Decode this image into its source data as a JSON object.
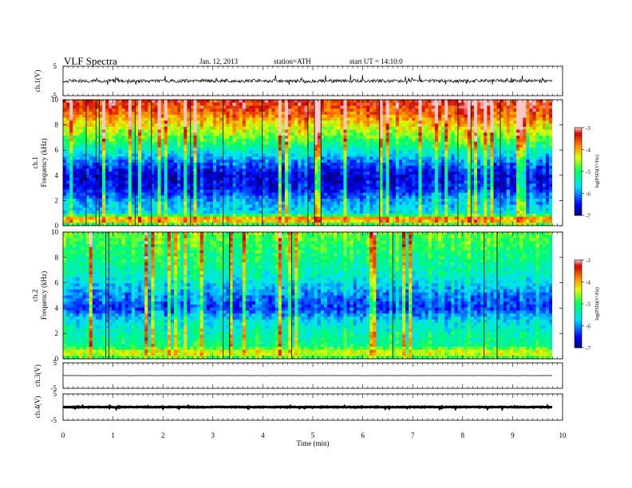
{
  "header": {
    "title": "VLF  Spectra",
    "date": "Jan. 12, 2013",
    "station": "station=ATH",
    "start": "start  UT  =   14:10:0"
  },
  "chart_data": [
    {
      "type": "line",
      "panel": "ch1-waveform",
      "ylabel": "ch.1(V)",
      "ylim": [
        -5,
        5
      ],
      "yticks": [
        "5",
        "-5"
      ],
      "xlim": [
        0,
        10
      ],
      "baseline": 0,
      "amplitude_range": [
        -1.2,
        1.3
      ]
    },
    {
      "type": "heatmap",
      "panel": "ch1-spectrogram",
      "ylabel": "ch.1\nFrequency  (kHz)",
      "ylabel_ch": "ch.1",
      "ylabel_freq": "Frequency  (kHz)",
      "ylim": [
        0,
        10
      ],
      "yticks": [
        "0",
        "2",
        "4",
        "6",
        "8",
        "10"
      ],
      "xlim": [
        0,
        9.8
      ],
      "zlim": [
        -7,
        -3
      ],
      "colorbar_label": "log(PSD)(V²/Hz)",
      "colorbar_ticks": [
        "-3",
        "-4",
        "-5",
        "-6",
        "-7"
      ],
      "profile_log_psd": [
        {
          "f": 0.0,
          "v": -5.2
        },
        {
          "f": 0.5,
          "v": -3.6
        },
        {
          "f": 1.0,
          "v": -5.6
        },
        {
          "f": 2.0,
          "v": -5.9
        },
        {
          "f": 3.0,
          "v": -6.5
        },
        {
          "f": 4.0,
          "v": -6.6
        },
        {
          "f": 5.0,
          "v": -6.1
        },
        {
          "f": 6.0,
          "v": -5.4
        },
        {
          "f": 7.0,
          "v": -4.7
        },
        {
          "f": 8.0,
          "v": -4.2
        },
        {
          "f": 9.0,
          "v": -3.6
        },
        {
          "f": 10.0,
          "v": -3.3
        }
      ]
    },
    {
      "type": "heatmap",
      "panel": "ch2-spectrogram",
      "ylabel": "ch.2\nFrequency  (kHz)",
      "ylabel_ch": "ch.2",
      "ylabel_freq": "Frequency  (kHz)",
      "ylim": [
        0,
        10
      ],
      "yticks": [
        "0",
        "2",
        "4",
        "6",
        "8",
        "10"
      ],
      "xlim": [
        0,
        9.8
      ],
      "zlim": [
        -7,
        -3
      ],
      "colorbar_label": "log(PSD)(V²/Hz)",
      "colorbar_ticks": [
        "-3",
        "-4",
        "-5",
        "-6",
        "-7"
      ],
      "profile_log_psd": [
        {
          "f": 0.0,
          "v": -5.0
        },
        {
          "f": 0.5,
          "v": -4.2
        },
        {
          "f": 1.0,
          "v": -5.1
        },
        {
          "f": 2.0,
          "v": -5.3
        },
        {
          "f": 3.0,
          "v": -5.6
        },
        {
          "f": 4.0,
          "v": -6.3
        },
        {
          "f": 5.0,
          "v": -6.0
        },
        {
          "f": 6.0,
          "v": -5.6
        },
        {
          "f": 7.0,
          "v": -5.3
        },
        {
          "f": 8.0,
          "v": -5.1
        },
        {
          "f": 9.0,
          "v": -4.9
        },
        {
          "f": 10.0,
          "v": -4.7
        }
      ]
    },
    {
      "type": "line",
      "panel": "ch3-waveform",
      "ylabel": "ch.3(V)",
      "ylim": [
        -5,
        5
      ],
      "yticks": [
        "5",
        "-5"
      ],
      "xlim": [
        0,
        9.8
      ],
      "baseline": 0
    },
    {
      "type": "line",
      "panel": "ch4-waveform",
      "ylabel": "ch.4(V)",
      "ylim": [
        -5,
        5
      ],
      "yticks": [
        "5",
        "-5"
      ],
      "xlim": [
        0,
        9.8
      ],
      "baseline": 0,
      "amplitude_range": [
        -0.3,
        0.3
      ]
    }
  ],
  "x_axis": {
    "label": "Time  (min)",
    "range": [
      0,
      10
    ],
    "ticks": [
      "0",
      "1",
      "2",
      "3",
      "4",
      "5",
      "6",
      "7",
      "8",
      "9",
      "10"
    ]
  },
  "colors": {
    "colormap": [
      "#00007a",
      "#0000ff",
      "#00e0ff",
      "#00ff60",
      "#e0ff00",
      "#ff8000",
      "#d00000",
      "#ffc8c8"
    ]
  }
}
